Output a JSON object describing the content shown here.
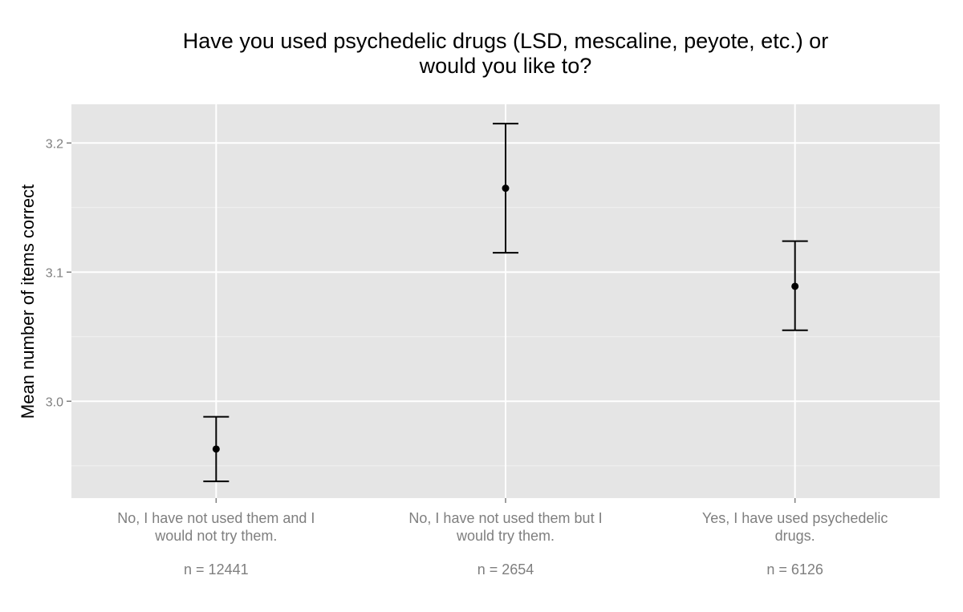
{
  "chart_data": {
    "type": "scatter",
    "title": [
      "Have you used psychedelic drugs (LSD, mescaline, peyote, etc.) or",
      "would you like to?"
    ],
    "xlabel": "",
    "ylabel": "Mean number of items correct",
    "ylim": [
      2.925,
      3.23
    ],
    "yticks": [
      {
        "value": 3.0,
        "label": "3.0"
      },
      {
        "value": 3.1,
        "label": "3.1"
      },
      {
        "value": 3.2,
        "label": "3.2"
      }
    ],
    "grid": true,
    "categories": [
      {
        "label_lines": [
          "No, I have not used them and I",
          "would not try them."
        ],
        "n_label": "n = 12441",
        "mean": 2.963,
        "lower": 2.938,
        "upper": 2.988
      },
      {
        "label_lines": [
          "No, I have not used them but I",
          "would try them."
        ],
        "n_label": "n = 2654",
        "mean": 3.165,
        "lower": 3.115,
        "upper": 3.215
      },
      {
        "label_lines": [
          "Yes, I have used psychedelic",
          "drugs."
        ],
        "n_label": "n = 6126",
        "mean": 3.089,
        "lower": 3.055,
        "upper": 3.124
      }
    ],
    "colors": {
      "panel": "#e5e5e5",
      "grid": "#ffffff",
      "marks": "#000000",
      "tick_text": "#7f7f7f"
    }
  }
}
